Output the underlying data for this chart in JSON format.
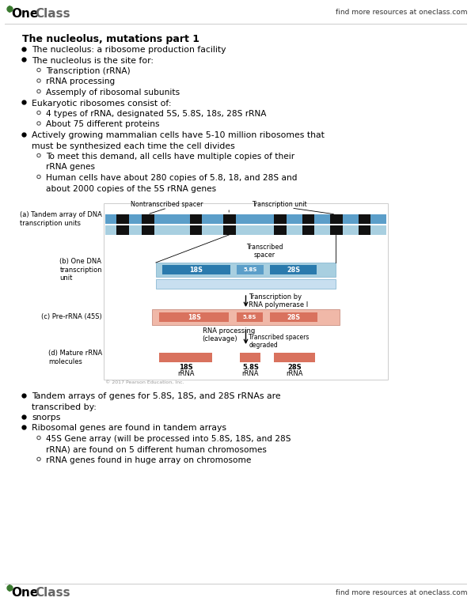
{
  "page_bg": "#ffffff",
  "header_right_text": "find more resources at oneclass.com",
  "footer_right_text": "find more resources at oneclass.com",
  "title": "The nucleolus, mutations part 1",
  "bullets": [
    {
      "level": 1,
      "text": "The nucleolus: a ribosome production facility"
    },
    {
      "level": 1,
      "text": "The nucleolus is the site for:"
    },
    {
      "level": 2,
      "text": "Transcription (rRNA)"
    },
    {
      "level": 2,
      "text": "rRNA processing"
    },
    {
      "level": 2,
      "text": "Assemply of ribosomal subunits"
    },
    {
      "level": 1,
      "text": "Eukaryotic ribosomes consist of:"
    },
    {
      "level": 2,
      "text": "4 types of rRNA, designated  5S, 5.8S, 18s, 28S      rRNA"
    },
    {
      "level": 2,
      "text": "About  75    different proteins"
    },
    {
      "level": 1,
      "text": "Actively growing mammalian cells have 5-10 million ribosomes that must be synthesized each time the cell divides"
    },
    {
      "level": 2,
      "text": "To meet this demand, all cells have multiple copies of their rRNA genes"
    },
    {
      "level": 2,
      "text": "Human cells have about 280 copies of 5.8, 18, and 28S and about 2000 copies of the 5S rRNA genes"
    }
  ],
  "bullets2": [
    {
      "level": 1,
      "text": "Tandem arrays of genes for 5.8S, 18S, and 28S rRNAs are transcribed by:"
    },
    {
      "level": 1,
      "text": "snorps"
    },
    {
      "level": 1,
      "text": "Ribosomal genes are found in tandem arrays"
    },
    {
      "level": 2,
      "text": "45S  Gene array (will be processed into 5.8S, 18S, and 28S rRNA) are found on 5 different human chromosomes"
    },
    {
      "level": 2,
      "text": "    rRNA genes found in huge array on chromosome"
    }
  ],
  "diagram": {
    "label_a": "(a) Tandem array of DNA\ntranscription units",
    "label_b": "(b) One DNA\ntranscription\nunit",
    "label_c": "(c) Pre-rRNA (45S)",
    "label_d": "(d) Mature rRNA\nmolecules",
    "annotation_nontranscribed": "Nontranscribed spacer",
    "annotation_transcription_unit": "Transcription unit",
    "annotation_transcribed_spacer": "Transcribed\nspacer",
    "annotation_transcription": "Transcription by\nRNA polymerase I",
    "annotation_rna_processing": "RNA processing\n(cleavage)",
    "annotation_transcribed_degraded": "Transcribed spacers\ndegraded",
    "copyright": "© 2017 Pearson Education, Inc.",
    "blue_dark": "#2a7aad",
    "blue_mid": "#5b9ec9",
    "blue_light": "#a8cfe0",
    "salmon_dark": "#d9725e",
    "salmon_light": "#f0b8a8"
  }
}
